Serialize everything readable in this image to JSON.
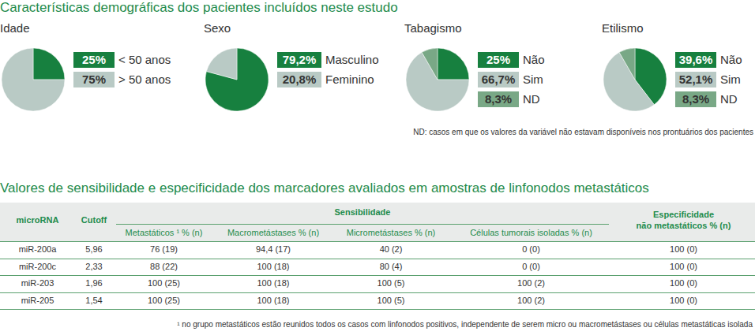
{
  "header": {
    "title": "Características demográficas dos pacientes incluídos neste estudo",
    "note": "ND: casos em que os valores da variável não estavam disponíveis nos prontuários dos pacientes"
  },
  "chart_data": [
    {
      "type": "pie",
      "title": "Idade",
      "categories": [
        "< 50 anos",
        "> 50 anos"
      ],
      "values": [
        25,
        75
      ],
      "value_labels": [
        "25%",
        "75%"
      ],
      "colors": [
        "#17803f",
        "#b9cac5"
      ]
    },
    {
      "type": "pie",
      "title": "Sexo",
      "categories": [
        "Masculino",
        "Feminino"
      ],
      "values": [
        79.2,
        20.8
      ],
      "value_labels": [
        "79,2%",
        "20,8%"
      ],
      "colors": [
        "#17803f",
        "#b9cac5"
      ]
    },
    {
      "type": "pie",
      "title": "Tabagismo",
      "categories": [
        "Não",
        "Sim",
        "ND"
      ],
      "values": [
        25,
        66.7,
        8.3
      ],
      "value_labels": [
        "25%",
        "66,7%",
        "8,3%"
      ],
      "colors": [
        "#17803f",
        "#b9cac5",
        "#79a886"
      ]
    },
    {
      "type": "pie",
      "title": "Etilismo",
      "categories": [
        "Não",
        "Sim",
        "ND"
      ],
      "values": [
        39.6,
        52.1,
        8.3
      ],
      "value_labels": [
        "39,6%",
        "52,1%",
        "8,3%"
      ],
      "colors": [
        "#17803f",
        "#b9cac5",
        "#79a886"
      ]
    }
  ],
  "table": {
    "title": "Valores de sensibilidade e especificidade dos marcadores avaliados em amostras de linfonodos metastáticos",
    "group_header": "Sensibilidade",
    "columns": [
      "microRNA",
      "Cutoff",
      "Metastáticos ¹ % (n)",
      "Macrometástases % (n)",
      "Micrometástases % (n)",
      "Células tumorais isoladas % (n)",
      [
        "Especificidade",
        "não metastáticos % (n)"
      ]
    ],
    "rows": [
      [
        "miR-200a",
        "5,96",
        "76 (19)",
        "94,4 (17)",
        "40 (2)",
        "0 (0)",
        "100 (0)"
      ],
      [
        "miR-200c",
        "2,33",
        "88 (22)",
        "100 (18)",
        "80 (4)",
        "0 (0)",
        "100 (0)"
      ],
      [
        "miR-203",
        "1,96",
        "100 (25)",
        "100 (18)",
        "100 (5)",
        "100 (2)",
        "100 (0)"
      ],
      [
        "miR-205",
        "1,54",
        "100 (25)",
        "100 (18)",
        "100 (5)",
        "100 (2)",
        "100 (0)"
      ]
    ],
    "footnote": "¹ no grupo metastáticos estão reunidos todos os casos com linfonodos positivos, independente de serem micro ou macrometástases ou células metastáticas isolada"
  }
}
